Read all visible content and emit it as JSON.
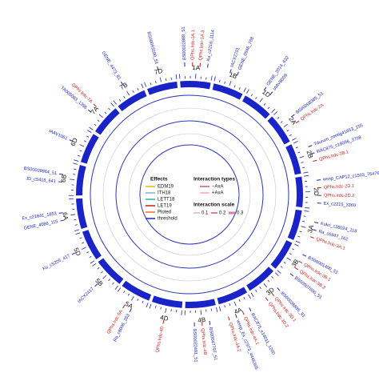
{
  "chart_data": {
    "type": "circos",
    "ideogram_color": "#1a23c8",
    "chromosomes": [
      {
        "name": "1A",
        "markers": [
          {
            "label": "BS00022888_51",
            "color": "#1a23c8"
          },
          {
            "label": "QPhs.lrdc-1A.1",
            "color": "#d01c1c"
          },
          {
            "label": "QPhs.lrdc-1A.3",
            "color": "#d01c1c"
          },
          {
            "label": "Ku_c2216_1114",
            "color": "#1a23c8"
          }
        ]
      },
      {
        "name": "1B",
        "markers": [
          {
            "label": "IACX2701",
            "color": "#1a23c8"
          },
          {
            "label": "GENE_0946_768",
            "color": "#1a23c8"
          }
        ]
      },
      {
        "name": "1D",
        "markers": [
          {
            "label": "GENE_2014_632",
            "color": "#1a23c8"
          },
          {
            "label": "IAAV6009",
            "color": "#1a23c8"
          }
        ]
      },
      {
        "name": "2A",
        "markers": [
          {
            "label": "BS00008385_51",
            "color": "#1a23c8"
          },
          {
            "label": "QPhs.lrdc-2A",
            "color": "#d01c1c"
          }
        ]
      },
      {
        "name": "2B",
        "markers": [
          {
            "label": "Tdurum_contig41653_155",
            "color": "#1a23c8"
          },
          {
            "label": "RAC875_c18096_3798",
            "color": "#1a23c8"
          },
          {
            "label": "QPhs.lrdc-2B.1",
            "color": "#d01c1c"
          }
        ]
      },
      {
        "name": "2D",
        "markers": [
          {
            "label": "wsnp_CAP12_c1503_764765",
            "color": "#1a23c8"
          },
          {
            "label": "QPhs.lrdc-2D.1",
            "color": "#d01c1c"
          },
          {
            "label": "QPhs.lrdc-2D.2",
            "color": "#d01c1c"
          },
          {
            "label": "Ex_c2215_3369",
            "color": "#1a23c8"
          }
        ]
      },
      {
        "name": "3A",
        "markers": [
          {
            "label": "Kukri_c35024_118",
            "color": "#1a23c8"
          },
          {
            "label": "Ra_c6947_162",
            "color": "#1a23c8"
          },
          {
            "label": "QPhs.lrdc-3A.1",
            "color": "#d01c1c"
          }
        ]
      },
      {
        "name": "3B",
        "markers": [
          {
            "label": "BS00001400_51",
            "color": "#1a23c8"
          },
          {
            "label": "QPhs.lrdc-3B.1",
            "color": "#d01c1c"
          },
          {
            "label": "QPhs.lrdc-3B.2",
            "color": "#d01c1c"
          },
          {
            "label": "BS00007600_51",
            "color": "#1a23c8"
          }
        ]
      },
      {
        "name": "3D",
        "markers": [
          {
            "label": "BS00036895_51",
            "color": "#1a23c8"
          },
          {
            "label": "QPhs.lrdc-3D.1",
            "color": "#d01c1c"
          },
          {
            "label": "QPhs.lrdc-3D.2",
            "color": "#d01c1c"
          }
        ]
      },
      {
        "name": "4A",
        "markers": [
          {
            "label": "RAC875_c14011_1200",
            "color": "#1a23c8"
          },
          {
            "label": "QPhs.lrdc-4A.1",
            "color": "#d01c1c"
          },
          {
            "label": "wsnp_Ex_c2373_4446365",
            "color": "#1a23c8"
          },
          {
            "label": "QPhs.lrdc-4A.2",
            "color": "#d01c1c"
          }
        ]
      },
      {
        "name": "4B",
        "markers": [
          {
            "label": "BS00047797_51",
            "color": "#1a23c8"
          },
          {
            "label": "QPhs.lrdc-4B",
            "color": "#d01c1c"
          },
          {
            "label": "BS00022491_51",
            "color": "#1a23c8"
          }
        ]
      },
      {
        "name": "4D",
        "markers": [
          {
            "label": "QPhs.lrdc-4D",
            "color": "#d01c1c"
          }
        ]
      },
      {
        "name": "5A",
        "markers": [
          {
            "label": "Ra_c8006_263",
            "color": "#1a23c8"
          },
          {
            "label": "QPhs.lrdc-5A",
            "color": "#d01c1c"
          }
        ]
      },
      {
        "name": "5B",
        "markers": [
          {
            "label": "IACX2417",
            "color": "#1a23c8"
          }
        ]
      },
      {
        "name": "5D",
        "markers": [
          {
            "label": "Ku_c5205_417",
            "color": "#1a23c8"
          }
        ]
      },
      {
        "name": "6A",
        "markers": [
          {
            "label": "GENE_4086_115",
            "color": "#1a23c8"
          },
          {
            "label": "Ex_c21841_1853",
            "color": "#1a23c8"
          }
        ]
      },
      {
        "name": "6B",
        "markers": [
          {
            "label": "JD_c5418_641",
            "color": "#1a23c8"
          },
          {
            "label": "BS00009864_51",
            "color": "#1a23c8"
          }
        ]
      },
      {
        "name": "6D",
        "markers": [
          {
            "label": "IAAV1061",
            "color": "#1a23c8"
          }
        ]
      },
      {
        "name": "7A",
        "markers": [
          {
            "label": "TA005083_1396",
            "color": "#1a23c8"
          },
          {
            "label": "QPhs.lrdc-7A",
            "color": "#d01c1c"
          }
        ]
      },
      {
        "name": "7B",
        "markers": [
          {
            "label": "GENE_4473_81",
            "color": "#1a23c8"
          }
        ]
      },
      {
        "name": "7D",
        "markers": [
          {
            "label": "BS00093200_51",
            "color": "#1a23c8"
          }
        ]
      }
    ],
    "legend": {
      "effects_title": "Effects",
      "effects": [
        {
          "name": "EDM19",
          "color": "#f0b400"
        },
        {
          "name": "ITH18",
          "color": "#7fa8e6"
        },
        {
          "name": "LETT18",
          "color": "#1fb5b0"
        },
        {
          "name": "LET19",
          "color": "#d01c1c"
        },
        {
          "name": "Ploted",
          "color": "#f07020"
        },
        {
          "name": "threshold",
          "color": "#1a23c8"
        }
      ],
      "interaction_title": "Interaction types",
      "interactions": [
        {
          "name": "−AxA",
          "color": "#d8508c"
        },
        {
          "name": "+AxA",
          "color": "#f4a6c6"
        }
      ],
      "scale_title": "Interaction scale",
      "scale": [
        0.1,
        0.2,
        0.3
      ],
      "scale_color": "#e07aa6"
    }
  }
}
